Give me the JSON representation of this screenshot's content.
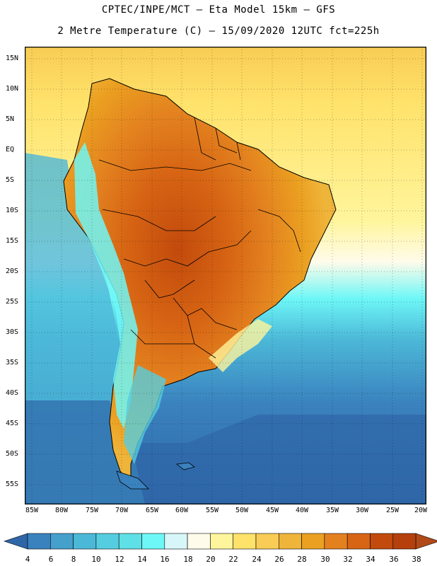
{
  "header": {
    "line1": "CPTEC/INPE/MCT –  Eta Model 15km – GFS",
    "line2": "2 Metre Temperature (C) – 15/09/2020 12UTC fct=225h"
  },
  "axes": {
    "lat_labels": [
      "15N",
      "10N",
      "5N",
      "EQ",
      "5S",
      "10S",
      "15S",
      "20S",
      "25S",
      "30S",
      "35S",
      "40S",
      "45S",
      "50S",
      "55S"
    ],
    "lon_labels": [
      "85W",
      "80W",
      "75W",
      "70W",
      "65W",
      "60W",
      "55W",
      "50W",
      "45W",
      "40W",
      "35W",
      "30W",
      "25W",
      "20W"
    ]
  },
  "colorbar": {
    "labels": [
      "4",
      "6",
      "8",
      "10",
      "12",
      "14",
      "16",
      "18",
      "20",
      "22",
      "24",
      "26",
      "28",
      "30",
      "32",
      "34",
      "36",
      "38"
    ],
    "colors": [
      "#2f66a8",
      "#3a82be",
      "#45a0cc",
      "#4cb8d8",
      "#55cde0",
      "#5fdfe6",
      "#6ef7f7",
      "#d6f6fa",
      "#fffbea",
      "#fff59c",
      "#ffe26a",
      "#f8cc55",
      "#efb43a",
      "#eba021",
      "#e3811f",
      "#d76514",
      "#c24a0c",
      "#b5400c",
      "#b14a18"
    ]
  },
  "map": {
    "ocean_cold": "#2f66a8",
    "ocean_mid": "#55cde0",
    "ocean_warm": "#fff59c",
    "land_hot": "#c24a0c",
    "land_warm": "#e3811f"
  }
}
